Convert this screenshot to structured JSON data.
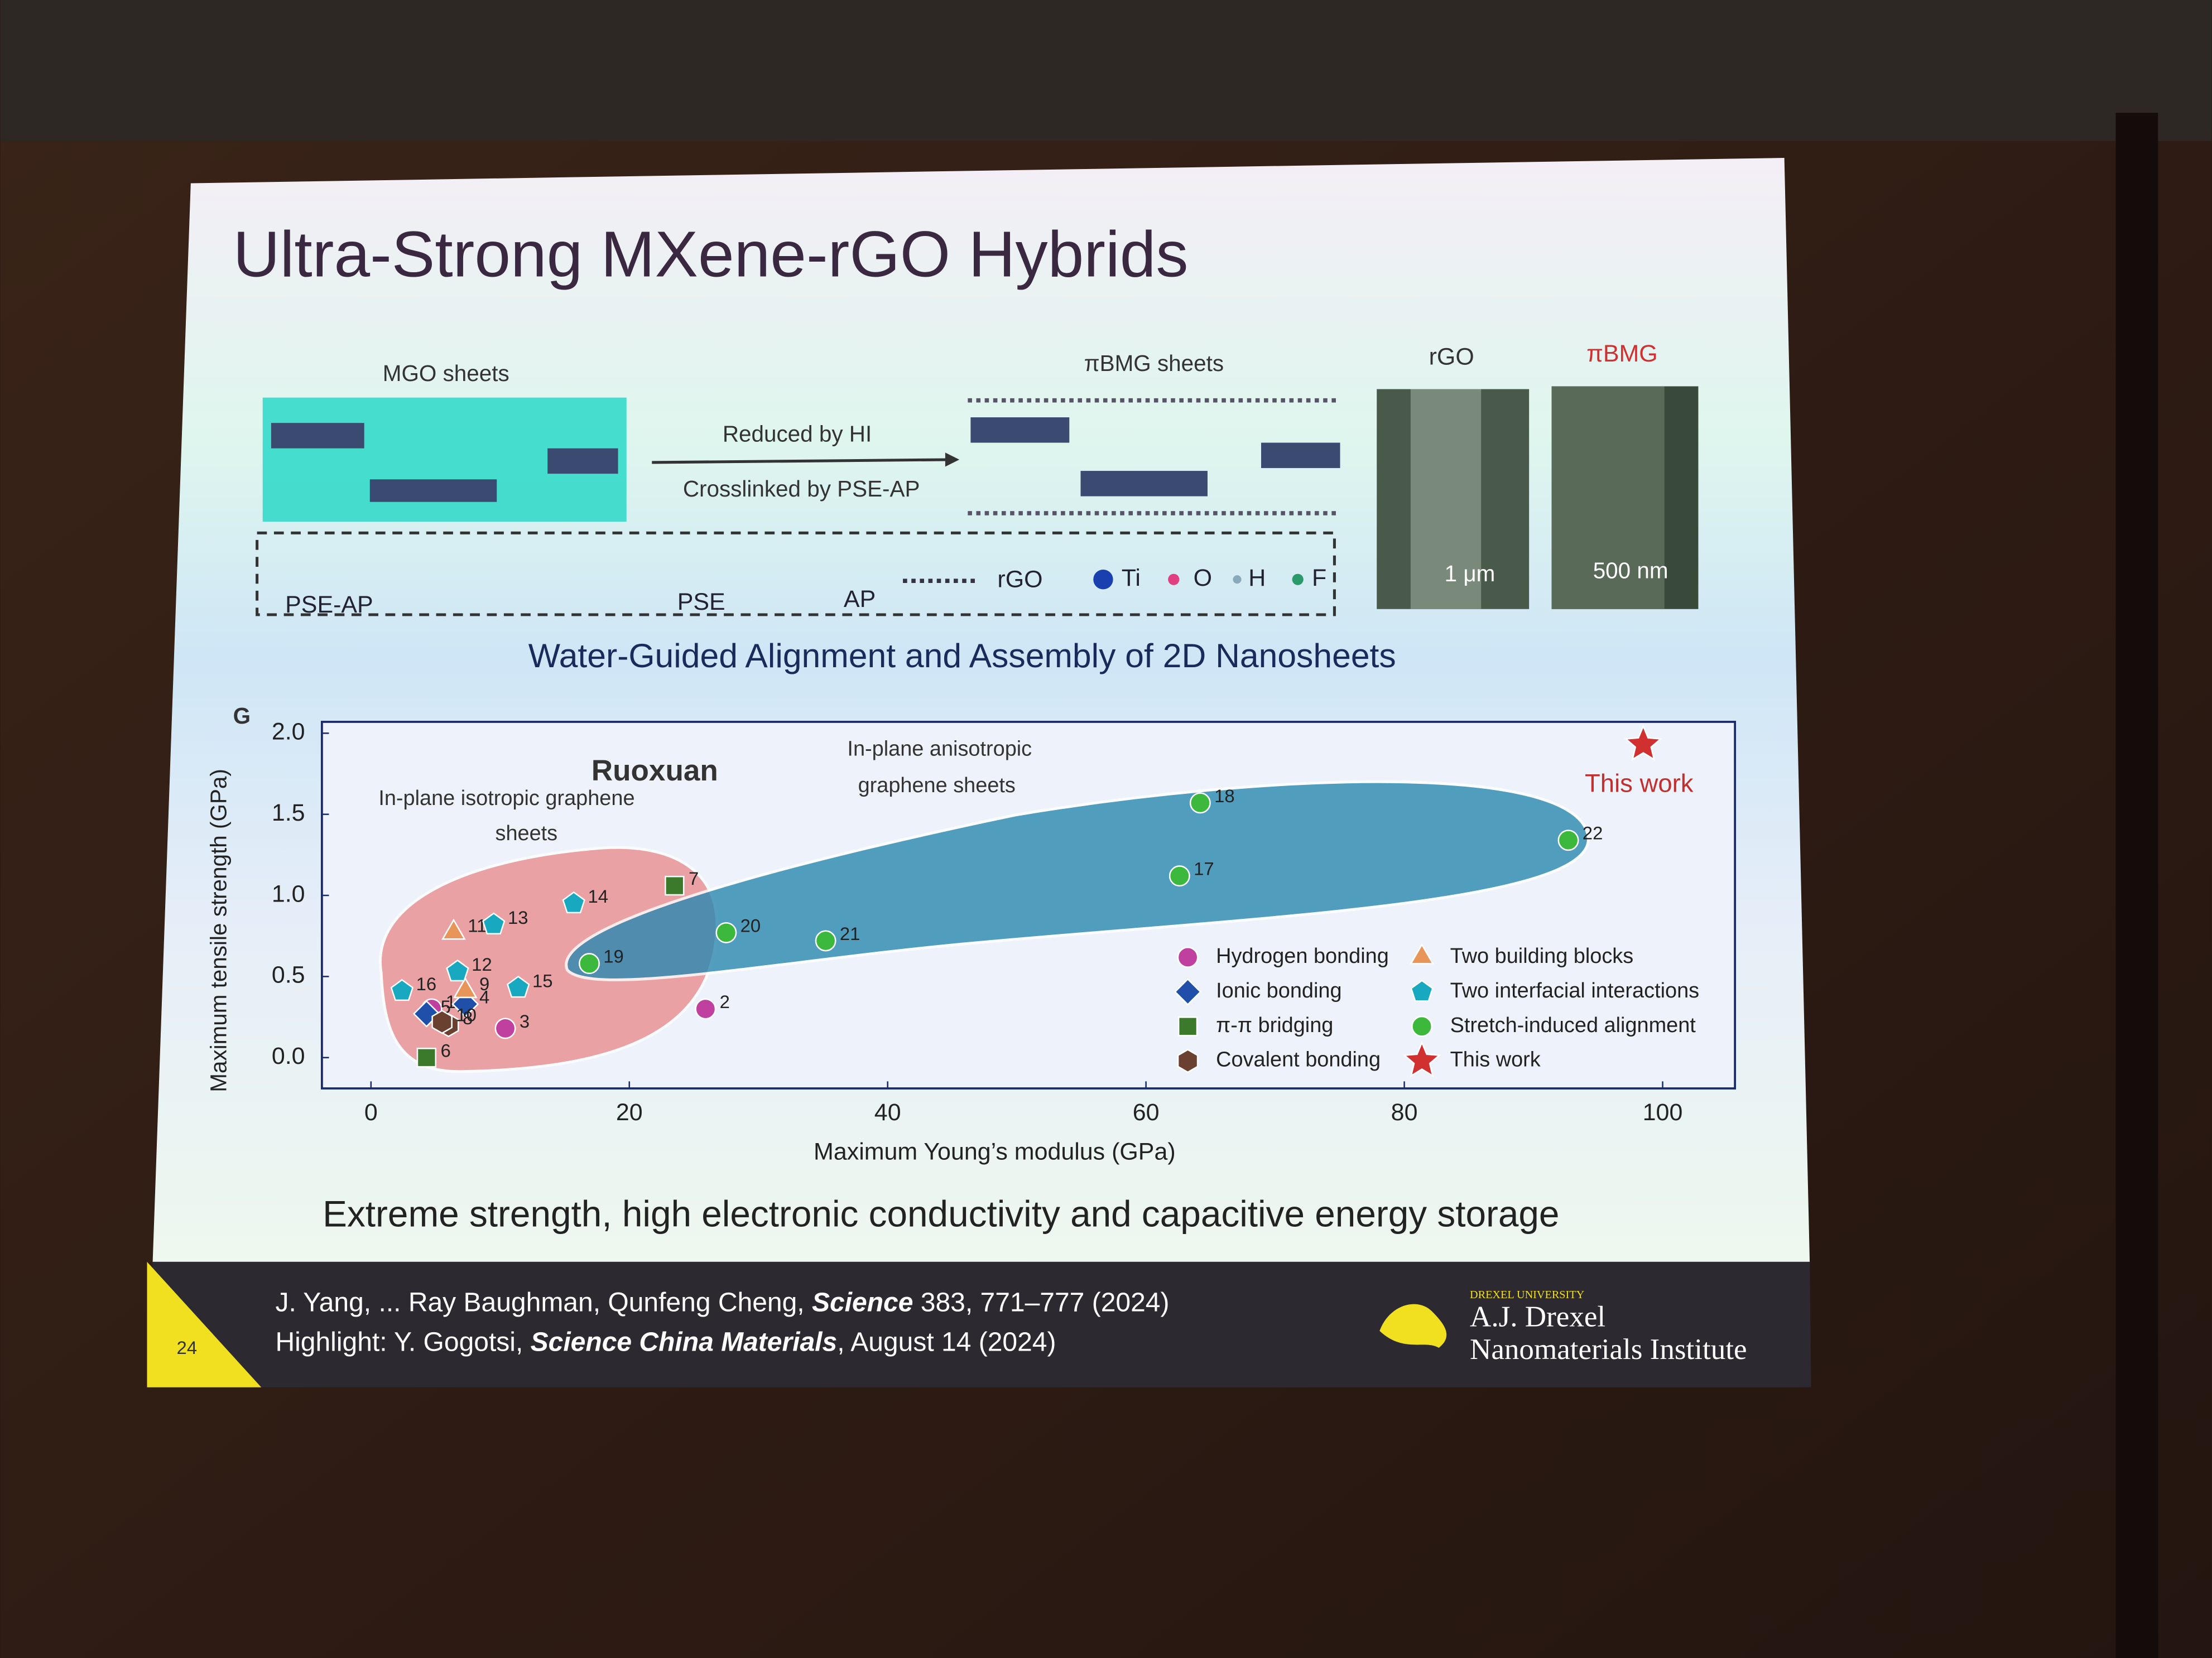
{
  "slide": {
    "title": "Ultra-Strong MXene-rGO Hybrids",
    "scheme": {
      "left_label": "MGO sheets",
      "arrow_top": "Reduced by HI",
      "arrow_bottom": "Crosslinked by PSE-AP",
      "right_label": "πBMG sheets",
      "key": [
        "PSE-AP",
        "PSE",
        "AP",
        "rGO",
        "Ti",
        "O",
        "H",
        "F"
      ]
    },
    "images": [
      {
        "label": "rGO",
        "scale": "1 μm"
      },
      {
        "label": "πBMG",
        "scale": "500 nm"
      }
    ],
    "subtitle": "Water-Guided Alignment and Assembly of 2D Nanosheets",
    "stray_letter": "G",
    "summary": "Extreme strength, high electronic conductivity and capacitive energy storage",
    "citations": [
      [
        "J. Yang, ... Ray Baughman, Qunfeng Cheng, ",
        "Science",
        " 383, 771–777 (2024)"
      ],
      [
        "Highlight: Y. Gogotsi, ",
        "Science China Materials",
        ", August 14 (2024)"
      ]
    ],
    "page_number": "24",
    "logo": [
      "DREXEL UNIVERSITY",
      "A.J. Drexel",
      "Nanomaterials Institute"
    ]
  },
  "chart_data": {
    "type": "scatter",
    "x_label": "Maximum Young’s modulus (GPa)",
    "y_label": "Maximum tensile strength (GPa)",
    "xlim": [
      -3.8,
      105.6
    ],
    "ylim": [
      -0.19,
      2.07
    ],
    "xticks": [
      0,
      20,
      40,
      60,
      80,
      100
    ],
    "yticks": [
      {
        "value": 0,
        "label": "0.0"
      },
      {
        "value": 0.5,
        "label": "0.5"
      },
      {
        "value": 1,
        "label": "1.0"
      },
      {
        "value": 1.5,
        "label": "1.5"
      },
      {
        "value": 2,
        "label": "2.0"
      }
    ],
    "annotations": [
      "Ruoxuan",
      [
        "In-plane isotropic graphene",
        "sheets"
      ],
      [
        "In-plane anisotropic",
        "graphene sheets"
      ],
      "This work"
    ],
    "series": [
      {
        "name": "Hydrogen bonding",
        "color": "#c040a0",
        "marker": "circle",
        "labels": [
          "1",
          "2",
          "3"
        ],
        "x": [
          4.7,
          25.9,
          10.4
        ],
        "values": [
          0.3,
          0.3,
          0.18
        ]
      },
      {
        "name": "Ionic bonding",
        "color": "#1f4fa8",
        "marker": "diamond",
        "labels": [
          "4",
          "5"
        ],
        "x": [
          7.3,
          4.3
        ],
        "values": [
          0.33,
          0.27
        ]
      },
      {
        "name": "π-π bridging",
        "color": "#3a7a2a",
        "marker": "square",
        "labels": [
          "6",
          "7"
        ],
        "x": [
          4.3,
          23.5
        ],
        "values": [
          0.0,
          1.06
        ]
      },
      {
        "name": "Covalent bonding",
        "color": "#6a4030",
        "marker": "hexagon",
        "labels": [
          "8",
          "10"
        ],
        "x": [
          6.0,
          5.5
        ],
        "values": [
          0.2,
          0.22
        ]
      },
      {
        "name": "Two building blocks",
        "color": "#e8955a",
        "marker": "triangle",
        "labels": [
          "9",
          "11"
        ],
        "x": [
          7.3,
          6.4
        ],
        "values": [
          0.41,
          0.77
        ]
      },
      {
        "name": "Two interfacial interactions",
        "color": "#18a8c0",
        "marker": "pentagon",
        "labels": [
          "12",
          "13",
          "14",
          "15",
          "16"
        ],
        "x": [
          6.7,
          9.5,
          15.7,
          11.4,
          2.4
        ],
        "values": [
          0.53,
          0.82,
          0.95,
          0.43,
          0.41
        ]
      },
      {
        "name": "Stretch-induced alignment",
        "color": "#3cb83c",
        "marker": "circle",
        "labels": [
          "17",
          "18",
          "19",
          "20",
          "21",
          "22"
        ],
        "x": [
          62.6,
          64.2,
          16.9,
          27.5,
          35.2,
          92.7
        ],
        "values": [
          1.12,
          1.57,
          0.58,
          0.77,
          0.72,
          1.34
        ]
      },
      {
        "name": "This work",
        "color": "#d03030",
        "marker": "star",
        "x": [
          98.5
        ],
        "values": [
          1.93
        ]
      }
    ]
  }
}
